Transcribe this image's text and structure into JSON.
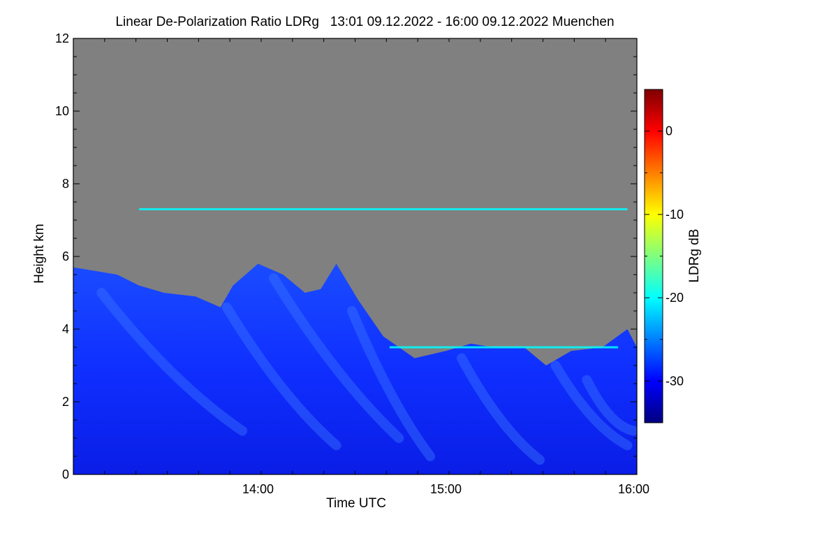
{
  "chart_data": {
    "type": "heatmap",
    "title": "Linear De-Polarization Ratio LDRg   13:01 09.12.2022 - 16:00 09.12.2022 Muenchen",
    "xlabel": "Time UTC",
    "ylabel": "Height km",
    "xlim": [
      "13:01",
      "16:01"
    ],
    "ylim": [
      0,
      12
    ],
    "x_ticks": [
      {
        "value": "14:00",
        "label": "14:00"
      },
      {
        "value": "15:00",
        "label": "15:00"
      },
      {
        "value": "16:00",
        "label": "16:00"
      }
    ],
    "y_ticks": [
      {
        "value": 0,
        "label": "0"
      },
      {
        "value": 2,
        "label": "2"
      },
      {
        "value": 4,
        "label": "4"
      },
      {
        "value": 6,
        "label": "6"
      },
      {
        "value": 8,
        "label": "8"
      },
      {
        "value": 10,
        "label": "10"
      },
      {
        "value": 12,
        "label": "12"
      }
    ],
    "background_color": "#808080",
    "colorbar": {
      "label": "LDRg dB",
      "range": [
        -35,
        5
      ],
      "ticks": [
        {
          "value": 0,
          "label": "0"
        },
        {
          "value": -10,
          "label": "-10"
        },
        {
          "value": -20,
          "label": "-20"
        },
        {
          "value": -30,
          "label": "-30"
        }
      ],
      "colors": [
        "#00007f",
        "#0000ff",
        "#007fff",
        "#00ffff",
        "#7fff7f",
        "#ffff00",
        "#ff7f00",
        "#ff0000",
        "#7f0000"
      ]
    },
    "cloud_top_km": [
      {
        "time": "13:01",
        "top": 5.7
      },
      {
        "time": "13:08",
        "top": 5.6
      },
      {
        "time": "13:15",
        "top": 5.5
      },
      {
        "time": "13:22",
        "top": 5.2
      },
      {
        "time": "13:30",
        "top": 5.0
      },
      {
        "time": "13:40",
        "top": 4.9
      },
      {
        "time": "13:48",
        "top": 4.6
      },
      {
        "time": "13:52",
        "top": 5.2
      },
      {
        "time": "14:00",
        "top": 5.8
      },
      {
        "time": "14:08",
        "top": 5.5
      },
      {
        "time": "14:15",
        "top": 5.0
      },
      {
        "time": "14:20",
        "top": 5.1
      },
      {
        "time": "14:25",
        "top": 5.8
      },
      {
        "time": "14:32",
        "top": 4.8
      },
      {
        "time": "14:40",
        "top": 3.8
      },
      {
        "time": "14:50",
        "top": 3.2
      },
      {
        "time": "15:00",
        "top": 3.4
      },
      {
        "time": "15:08",
        "top": 3.6
      },
      {
        "time": "15:15",
        "top": 3.5
      },
      {
        "time": "15:25",
        "top": 3.5
      },
      {
        "time": "15:32",
        "top": 3.0
      },
      {
        "time": "15:40",
        "top": 3.4
      },
      {
        "time": "15:50",
        "top": 3.5
      },
      {
        "time": "15:58",
        "top": 4.0
      },
      {
        "time": "16:01",
        "top": 3.5
      }
    ],
    "features": [
      {
        "name": "thin layer near 7.3 km",
        "height_km": 7.3,
        "start": "13:22",
        "end": "15:58",
        "ldr_db": -18
      },
      {
        "name": "layer near 3.5 km",
        "height_km": 3.5,
        "start": "14:42",
        "end": "15:55",
        "ldr_db": -20
      }
    ]
  }
}
